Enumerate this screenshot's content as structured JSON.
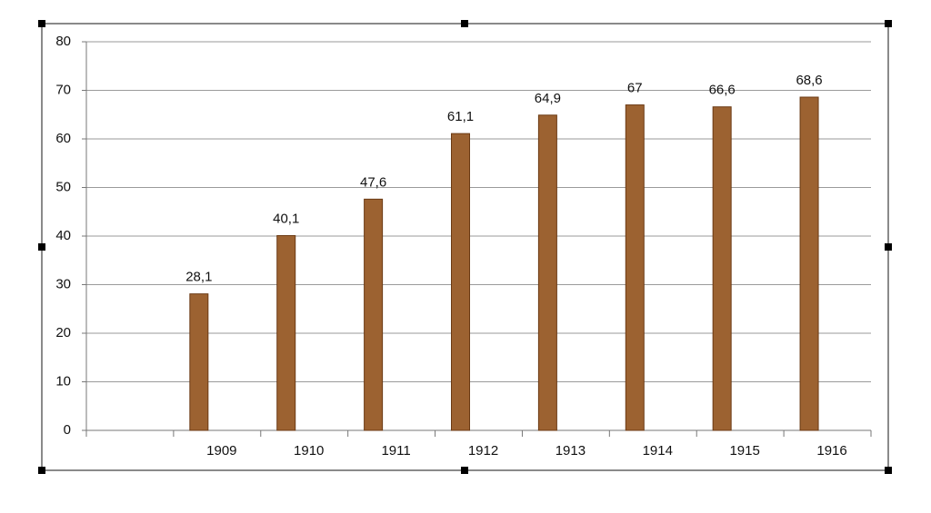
{
  "chart_data": {
    "type": "bar",
    "categories": [
      null,
      "1909",
      "1910",
      "1911",
      "1912",
      "1913",
      "1914",
      "1915",
      "1916"
    ],
    "values": [
      null,
      28.1,
      40.1,
      47.6,
      61.1,
      64.9,
      67,
      66.6,
      68.6
    ],
    "value_labels": [
      null,
      "28,1",
      "40,1",
      "47,6",
      "61,1",
      "64,9",
      "67",
      "66,6",
      "68,6"
    ],
    "color": "#9c6231",
    "ylim": [
      0,
      80
    ],
    "yticks": [
      0,
      10,
      20,
      30,
      40,
      50,
      60,
      70,
      80
    ],
    "grid": true
  }
}
